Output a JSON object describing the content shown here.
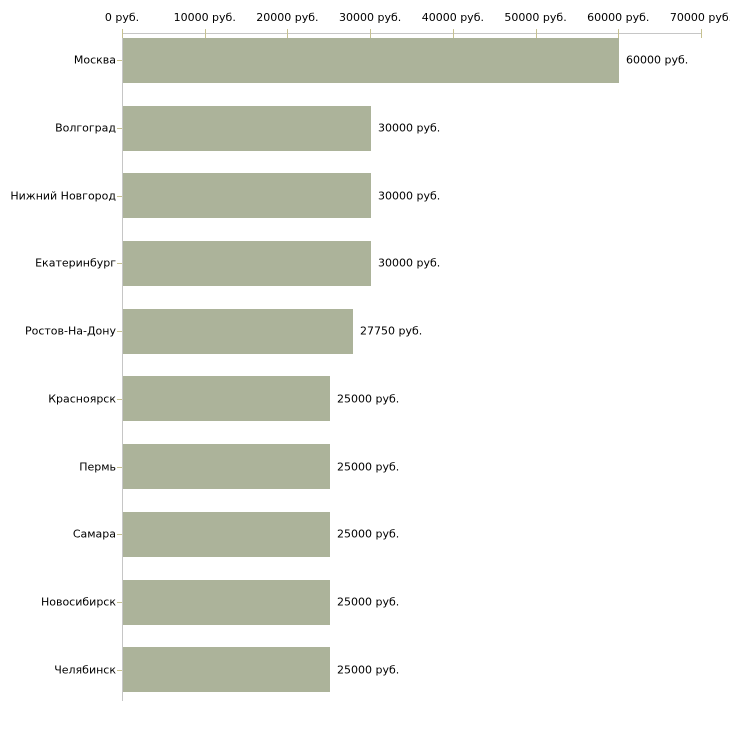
{
  "chart_data": {
    "type": "bar",
    "orientation": "horizontal",
    "title": "",
    "xlabel": "",
    "ylabel": "",
    "grid": false,
    "legend": false,
    "categories": [
      "Москва",
      "Волгоград",
      "Нижний Новгород",
      "Екатеринбург",
      "Ростов-На-Дону",
      "Красноярск",
      "Пермь",
      "Самара",
      "Новосибирск",
      "Челябинск"
    ],
    "values": [
      60000,
      30000,
      30000,
      30000,
      27750,
      25000,
      25000,
      25000,
      25000,
      25000
    ],
    "value_labels": [
      "60000 руб.",
      "30000 руб.",
      "30000 руб.",
      "30000 руб.",
      "27750 руб.",
      "25000 руб.",
      "25000 руб.",
      "25000 руб.",
      "25000 руб.",
      "25000 руб."
    ],
    "x_axis": {
      "position": "top",
      "min": 0,
      "max": 70000,
      "ticks": [
        0,
        10000,
        20000,
        30000,
        40000,
        50000,
        60000,
        70000
      ],
      "tick_labels": [
        "0 руб.",
        "10000 руб.",
        "20000 руб.",
        "30000 руб.",
        "40000 руб.",
        "50000 руб.",
        "60000 руб.",
        "70000 руб."
      ]
    },
    "colors": {
      "bar": "#acb39a",
      "axis_line": "#c6c6c6",
      "tick_mark": "#c6c190",
      "text": "#000000",
      "background": "#ffffff"
    }
  }
}
